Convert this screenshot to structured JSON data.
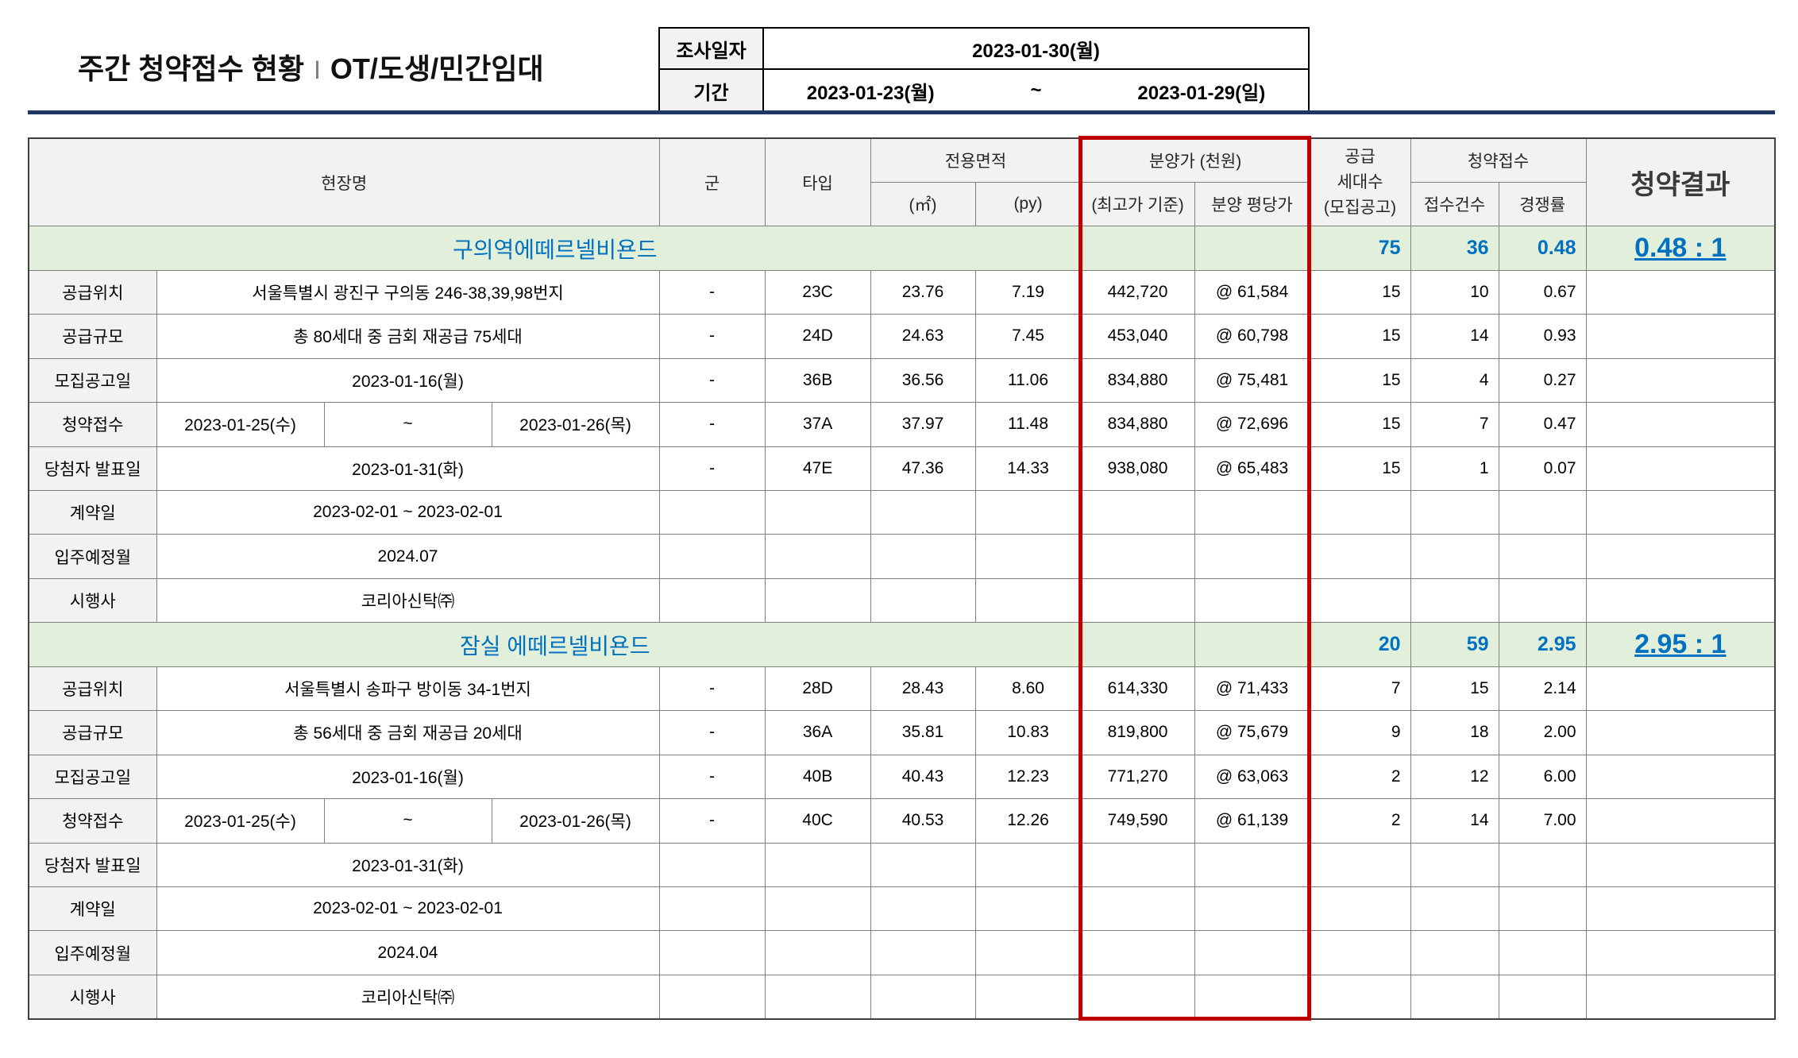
{
  "title": {
    "main": "주간 청약접수 현황",
    "separator": "I",
    "category": "OT/도생/민간임대"
  },
  "survey": {
    "date_label": "조사일자",
    "date_value": "2023-01-30(월)",
    "period_label": "기간",
    "period_start": "2023-01-23(월)",
    "period_tilde": "~",
    "period_end": "2023-01-29(일)"
  },
  "header": {
    "site_name": "현장명",
    "group": "군",
    "type": "타입",
    "area": "전용면적",
    "area_m2": "(㎡)",
    "area_py": "(py)",
    "price": "분양가 (천원)",
    "price_max": "(최고가 기준)",
    "price_per_py": "분양 평당가",
    "supply_line1": "공급",
    "supply_line2": "세대수",
    "supply_line3": "(모집공고)",
    "subscription": "청약접수",
    "applications": "접수건수",
    "competition_ratio": "경쟁률",
    "result": "청약결과"
  },
  "projects": [
    {
      "name": "구의역에떼르넬비욘드",
      "total_supply": "75",
      "total_applications": "36",
      "total_ratio": "0.48",
      "result": "0.48 : 1",
      "info": {
        "location_label": "공급위치",
        "location": "서울특별시 광진구 구의동 246-38,39,98번지",
        "scale_label": "공급규모",
        "scale": "총 80세대 중 금회 재공급 75세대",
        "notice_label": "모집공고일",
        "notice_date": "2023-01-16(월)",
        "apply_label": "청약접수",
        "apply_start": "2023-01-25(수)",
        "apply_tilde": "~",
        "apply_end": "2023-01-26(목)",
        "winner_label": "당첨자 발표일",
        "winner_date": "2023-01-31(화)",
        "contract_label": "계약일",
        "contract_period": "2023-02-01 ~ 2023-02-01",
        "move_in_label": "입주예정월",
        "move_in": "2024.07",
        "developer_label": "시행사",
        "developer": "코리아신탁㈜"
      },
      "units": [
        {
          "group": "-",
          "type": "23C",
          "area_m2": "23.76",
          "area_py": "7.19",
          "price_max": "442,720",
          "price_per_py": "@ 61,584",
          "supply": "15",
          "applications": "10",
          "ratio": "0.67"
        },
        {
          "group": "-",
          "type": "24D",
          "area_m2": "24.63",
          "area_py": "7.45",
          "price_max": "453,040",
          "price_per_py": "@ 60,798",
          "supply": "15",
          "applications": "14",
          "ratio": "0.93"
        },
        {
          "group": "-",
          "type": "36B",
          "area_m2": "36.56",
          "area_py": "11.06",
          "price_max": "834,880",
          "price_per_py": "@ 75,481",
          "supply": "15",
          "applications": "4",
          "ratio": "0.27"
        },
        {
          "group": "-",
          "type": "37A",
          "area_m2": "37.97",
          "area_py": "11.48",
          "price_max": "834,880",
          "price_per_py": "@ 72,696",
          "supply": "15",
          "applications": "7",
          "ratio": "0.47"
        },
        {
          "group": "-",
          "type": "47E",
          "area_m2": "47.36",
          "area_py": "14.33",
          "price_max": "938,080",
          "price_per_py": "@ 65,483",
          "supply": "15",
          "applications": "1",
          "ratio": "0.07"
        }
      ]
    },
    {
      "name": "잠실 에떼르넬비욘드",
      "total_supply": "20",
      "total_applications": "59",
      "total_ratio": "2.95",
      "result": "2.95 : 1",
      "info": {
        "location_label": "공급위치",
        "location": "서울특별시 송파구 방이동 34-1번지",
        "scale_label": "공급규모",
        "scale": "총 56세대 중 금회 재공급 20세대",
        "notice_label": "모집공고일",
        "notice_date": "2023-01-16(월)",
        "apply_label": "청약접수",
        "apply_start": "2023-01-25(수)",
        "apply_tilde": "~",
        "apply_end": "2023-01-26(목)",
        "winner_label": "당첨자 발표일",
        "winner_date": "2023-01-31(화)",
        "contract_label": "계약일",
        "contract_period": "2023-02-01 ~ 2023-02-01",
        "move_in_label": "입주예정월",
        "move_in": "2024.04",
        "developer_label": "시행사",
        "developer": "코리아신탁㈜"
      },
      "units": [
        {
          "group": "-",
          "type": "28D",
          "area_m2": "28.43",
          "area_py": "8.60",
          "price_max": "614,330",
          "price_per_py": "@ 71,433",
          "supply": "7",
          "applications": "15",
          "ratio": "2.14"
        },
        {
          "group": "-",
          "type": "36A",
          "area_m2": "35.81",
          "area_py": "10.83",
          "price_max": "819,800",
          "price_per_py": "@ 75,679",
          "supply": "9",
          "applications": "18",
          "ratio": "2.00"
        },
        {
          "group": "-",
          "type": "40B",
          "area_m2": "40.43",
          "area_py": "12.23",
          "price_max": "771,270",
          "price_per_py": "@ 63,063",
          "supply": "2",
          "applications": "12",
          "ratio": "6.00"
        },
        {
          "group": "-",
          "type": "40C",
          "area_m2": "40.53",
          "area_py": "12.26",
          "price_max": "749,590",
          "price_per_py": "@ 61,139",
          "supply": "2",
          "applications": "14",
          "ratio": "7.00"
        }
      ]
    }
  ],
  "colors": {
    "header_bg": "#f2f2f2",
    "project_bg": "#e2efda",
    "project_text": "#0070c0",
    "highlight_border": "#c00000",
    "divider": "#1f3864"
  }
}
